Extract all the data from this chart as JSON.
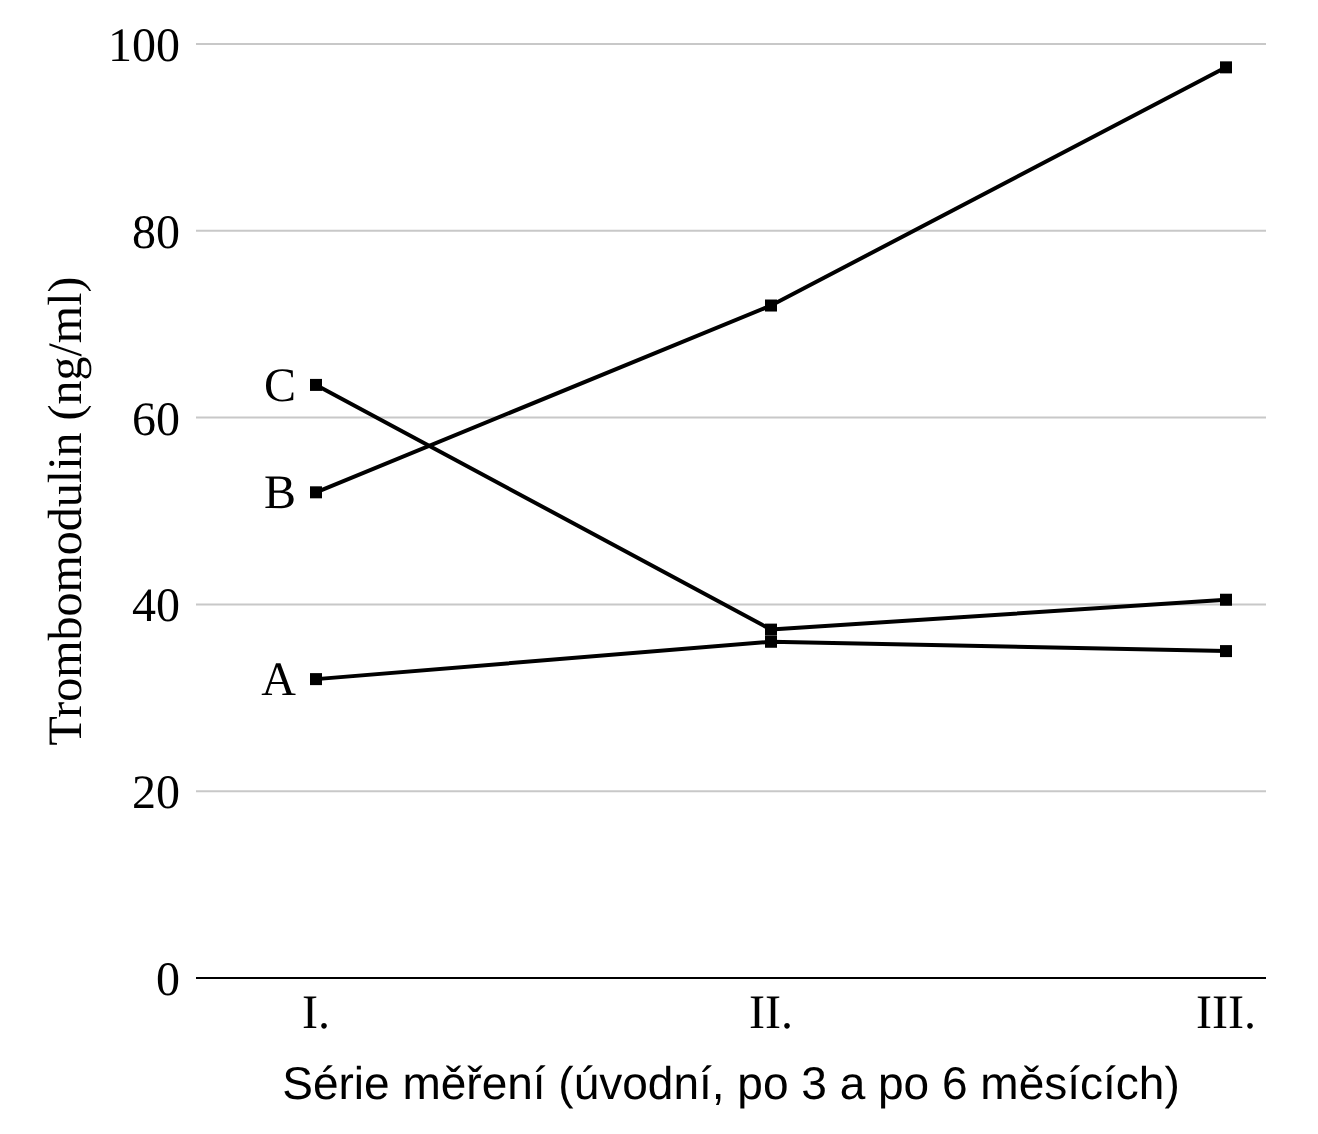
{
  "chart_data": {
    "type": "line",
    "xlabel": "Série měření (úvodní, po 3 a po 6 měsících)",
    "ylabel": "Trombomodulin (ng/ml)",
    "categories": [
      "I.",
      "II.",
      "III."
    ],
    "series": [
      {
        "name": "A",
        "color": "#000000",
        "values": [
          32,
          36,
          35
        ]
      },
      {
        "name": "B",
        "color": "#000000",
        "values": [
          52,
          72,
          97.5
        ]
      },
      {
        "name": "C",
        "color": "#000000",
        "values": [
          63.5,
          37.3,
          40.5
        ]
      }
    ],
    "ylim": [
      0,
      100
    ],
    "yticks": [
      0,
      20,
      40,
      60,
      80,
      100
    ],
    "grid": "y",
    "marker": "square",
    "line_style": "solid"
  }
}
